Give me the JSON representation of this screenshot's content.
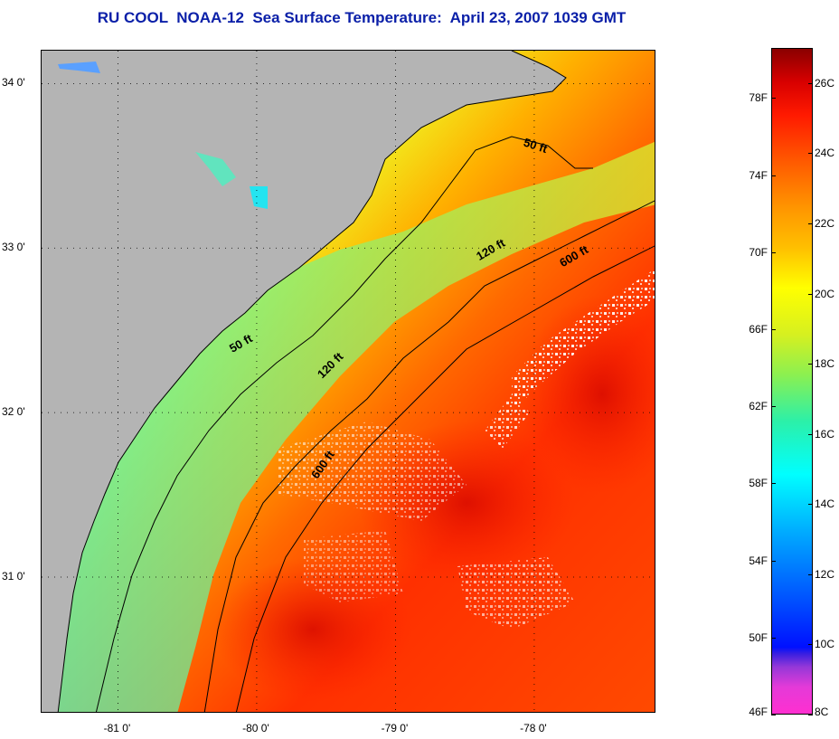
{
  "title": "RU COOL  NOAA-12  Sea Surface Temperature:  April 23, 2007 1039 GMT",
  "map": {
    "lat_ticks": [
      {
        "value": 34,
        "label": "34 0'"
      },
      {
        "value": 33,
        "label": "33 0'"
      },
      {
        "value": 32,
        "label": "32 0'"
      },
      {
        "value": 31,
        "label": "31 0'"
      }
    ],
    "lon_ticks": [
      {
        "value": -81,
        "label": "-81 0'"
      },
      {
        "value": -80,
        "label": "-80 0'"
      },
      {
        "value": -79,
        "label": "-79 0'"
      },
      {
        "value": -78,
        "label": "-78 0'"
      }
    ],
    "lon_range": [
      -81.55,
      -77.12
    ],
    "lat_range": [
      30.17,
      34.2
    ],
    "land_color": "#b4b4b4",
    "contour_labels": [
      {
        "text": "50 ft",
        "lon": -78.0,
        "lat": 33.6,
        "angle": 18
      },
      {
        "text": "120 ft",
        "lon": -78.3,
        "lat": 32.97,
        "angle": -30
      },
      {
        "text": "600 ft",
        "lon": -77.7,
        "lat": 32.93,
        "angle": -30
      },
      {
        "text": "50 ft",
        "lon": -80.1,
        "lat": 32.4,
        "angle": -30
      },
      {
        "text": "120 ft",
        "lon": -79.45,
        "lat": 32.27,
        "angle": -45
      },
      {
        "text": "600 ft",
        "lon": -79.5,
        "lat": 31.67,
        "angle": -55
      }
    ]
  },
  "colorbar": {
    "fahrenheit": [
      "78F",
      "74F",
      "70F",
      "66F",
      "62F",
      "58F",
      "54F",
      "50F",
      "46F"
    ],
    "celsius": [
      "26C",
      "24C",
      "22C",
      "20C",
      "18C",
      "16C",
      "14C",
      "12C",
      "10C",
      "8C"
    ]
  }
}
